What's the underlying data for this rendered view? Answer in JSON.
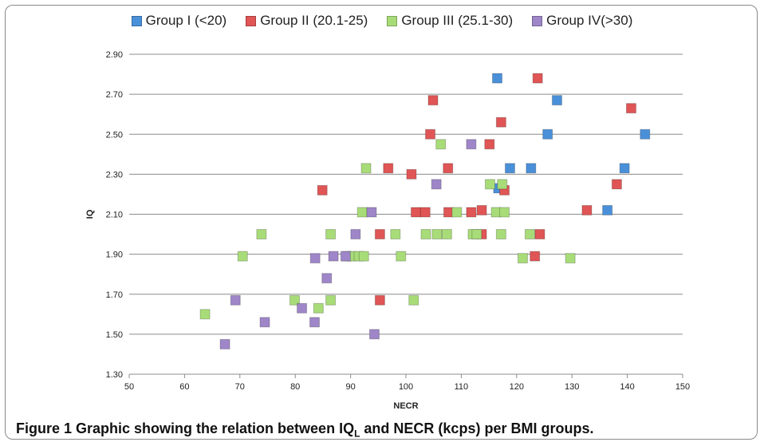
{
  "caption": {
    "label": "Figure 1",
    "text_before_sub": " Graphic showing the relation between IQ",
    "sub": "L",
    "text_after_sub": " and NECR (kcps) per BMI groups."
  },
  "chart_data": {
    "type": "scatter",
    "title": "",
    "xlabel": "NECR",
    "ylabel": "IQ",
    "xlim": [
      50,
      150
    ],
    "ylim": [
      1.3,
      2.9
    ],
    "xticks": [
      "50",
      "60",
      "70",
      "80",
      "90",
      "100",
      "110",
      "120",
      "130",
      "140",
      "150"
    ],
    "yticks": [
      "1.30",
      "1.50",
      "1.70",
      "1.90",
      "2.10",
      "2.30",
      "2.50",
      "2.70",
      "2.90"
    ],
    "grid": "horizontal",
    "legend_position": "top",
    "series": [
      {
        "name": "Group I (<20)",
        "color": "#4a90d9",
        "points": [
          [
            116.5,
            2.78
          ],
          [
            127.3,
            2.67
          ],
          [
            143.2,
            2.5
          ],
          [
            125.6,
            2.5
          ],
          [
            118.8,
            2.33
          ],
          [
            122.6,
            2.33
          ],
          [
            139.5,
            2.33
          ],
          [
            116.7,
            2.23
          ],
          [
            136.4,
            2.12
          ]
        ]
      },
      {
        "name": "Group II (20.1-25)",
        "color": "#e05555",
        "points": [
          [
            123.8,
            2.78
          ],
          [
            104.9,
            2.67
          ],
          [
            140.7,
            2.63
          ],
          [
            117.2,
            2.56
          ],
          [
            104.4,
            2.5
          ],
          [
            115.1,
            2.45
          ],
          [
            96.8,
            2.33
          ],
          [
            101.0,
            2.3
          ],
          [
            107.6,
            2.33
          ],
          [
            138.1,
            2.25
          ],
          [
            84.9,
            2.22
          ],
          [
            117.8,
            2.22
          ],
          [
            101.8,
            2.11
          ],
          [
            103.5,
            2.11
          ],
          [
            107.7,
            2.11
          ],
          [
            111.8,
            2.11
          ],
          [
            113.7,
            2.12
          ],
          [
            132.7,
            2.12
          ],
          [
            95.3,
            2.0
          ],
          [
            113.7,
            2.0
          ],
          [
            124.2,
            2.0
          ],
          [
            123.3,
            1.89
          ],
          [
            95.3,
            1.67
          ]
        ]
      },
      {
        "name": "Group III (25.1-30)",
        "color": "#a8dc78",
        "points": [
          [
            106.3,
            2.45
          ],
          [
            92.8,
            2.33
          ],
          [
            92.1,
            2.11
          ],
          [
            115.2,
            2.25
          ],
          [
            117.4,
            2.25
          ],
          [
            116.3,
            2.11
          ],
          [
            117.8,
            2.11
          ],
          [
            109.2,
            2.11
          ],
          [
            73.9,
            2.0
          ],
          [
            86.4,
            2.0
          ],
          [
            98.1,
            2.0
          ],
          [
            103.6,
            2.0
          ],
          [
            105.6,
            2.0
          ],
          [
            107.4,
            2.0
          ],
          [
            112.1,
            2.0
          ],
          [
            112.8,
            2.0
          ],
          [
            117.2,
            2.0
          ],
          [
            122.4,
            2.0
          ],
          [
            70.5,
            1.89
          ],
          [
            89.4,
            1.89
          ],
          [
            90.2,
            1.89
          ],
          [
            91.5,
            1.89
          ],
          [
            92.4,
            1.89
          ],
          [
            99.1,
            1.89
          ],
          [
            121.1,
            1.88
          ],
          [
            129.7,
            1.88
          ],
          [
            79.9,
            1.67
          ],
          [
            86.4,
            1.67
          ],
          [
            101.4,
            1.67
          ],
          [
            84.2,
            1.63
          ],
          [
            63.7,
            1.6
          ]
        ]
      },
      {
        "name": "Group IV(>30)",
        "color": "#9e86c8",
        "points": [
          [
            111.8,
            2.45
          ],
          [
            105.5,
            2.25
          ],
          [
            93.8,
            2.11
          ],
          [
            90.9,
            2.0
          ],
          [
            86.9,
            1.89
          ],
          [
            83.6,
            1.88
          ],
          [
            89.1,
            1.89
          ],
          [
            85.7,
            1.78
          ],
          [
            69.2,
            1.67
          ],
          [
            81.2,
            1.63
          ],
          [
            74.5,
            1.56
          ],
          [
            83.5,
            1.56
          ],
          [
            94.3,
            1.5
          ],
          [
            67.3,
            1.45
          ]
        ]
      }
    ]
  }
}
